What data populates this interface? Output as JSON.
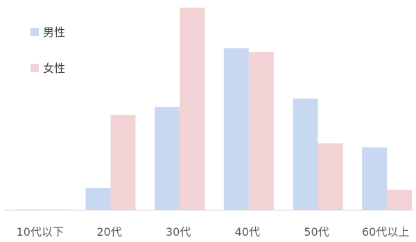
{
  "chart_data": {
    "type": "bar",
    "title": "",
    "xlabel": "",
    "ylabel": "",
    "categories": [
      "10代以下",
      "20代",
      "30代",
      "40代",
      "50代",
      "60代以上"
    ],
    "series": [
      {
        "name": "男性",
        "color": "#c7d8f0",
        "values": [
          0.3,
          11,
          51,
          80,
          55,
          31
        ]
      },
      {
        "name": "女性",
        "color": "#f2d2d4",
        "values": [
          0.3,
          47,
          100,
          78,
          33,
          10
        ]
      }
    ],
    "ylim": [
      0,
      100
    ],
    "grid": false,
    "legend": "top-left"
  }
}
